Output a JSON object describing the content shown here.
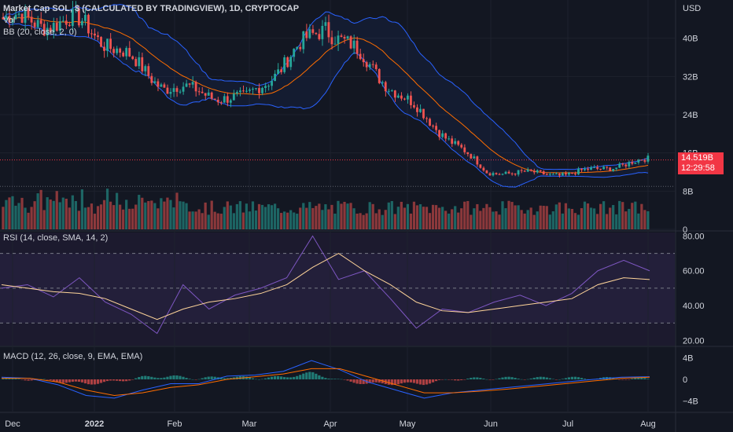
{
  "legend": {
    "title": "Market Cap SOL, $ (CALCULATED BY TRADINGVIEW), 1D, CRYPTOCAP",
    "vol": "Vol",
    "bb": "BB (20, close, 2, 0)",
    "rsi": "RSI (14, close, SMA, 14, 2)",
    "macd": "MACD (12, 26, close, 9, EMA, EMA)"
  },
  "price_axis": {
    "currency": "USD",
    "ticks": [
      "40B",
      "32B",
      "24B",
      "16B",
      "8B",
      "0"
    ]
  },
  "rsi_axis": {
    "ticks": [
      "80.00",
      "60.00",
      "40.00",
      "20.00"
    ]
  },
  "macd_axis": {
    "ticks": [
      "4B",
      "0",
      "−4B"
    ]
  },
  "time_axis": {
    "ticks": [
      "Dec",
      "2022",
      "Feb",
      "Mar",
      "Apr",
      "May",
      "Jun",
      "Jul",
      "Aug"
    ]
  },
  "last_price": {
    "value": "14.519B",
    "countdown": "12:29:58"
  },
  "colors": {
    "background": "#131722",
    "up": "#26a69a",
    "down": "#ef5350",
    "bb_band": "#2962ff",
    "bb_basis": "#ff6d00",
    "rsi": "#7e57c2",
    "rsi_ma": "#ffd59a",
    "macd": "#2962ff",
    "signal": "#ff6d00",
    "price_tag": "#f23645"
  },
  "chart_data": [
    {
      "type": "candlestick",
      "title": "Market Cap SOL, $ (CALCULATED BY TRADINGVIEW), 1D, CRYPTOCAP",
      "unit": "USD billions",
      "ylim": [
        0,
        48
      ],
      "x": [
        "Dec",
        "2022",
        "Feb",
        "Mar",
        "Apr",
        "May",
        "Jun",
        "Jul",
        "Aug"
      ],
      "close_series": [
        {
          "date": "Dec",
          "value": 44
        },
        {
          "date": "2022",
          "value": 43
        },
        {
          "date": "Feb",
          "value": 30
        },
        {
          "date": "Mar",
          "value": 27
        },
        {
          "date": "Apr",
          "value": 43
        },
        {
          "date": "May",
          "value": 27
        },
        {
          "date": "Jun",
          "value": 12
        },
        {
          "date": "Jul",
          "value": 11.5
        },
        {
          "date": "Aug",
          "value": 14.5
        }
      ],
      "last_value": 14.519
    },
    {
      "type": "bar",
      "title": "Vol",
      "note": "volume histogram in price pane"
    },
    {
      "type": "line",
      "title": "RSI (14, close, SMA, 14, 2)",
      "ylim": [
        17,
        82
      ],
      "levels": [
        70,
        50,
        30
      ],
      "series": [
        {
          "name": "RSI",
          "values": [
            50,
            52,
            45,
            56,
            42,
            35,
            24,
            52,
            38,
            46,
            50,
            56,
            80,
            55,
            60,
            44,
            27,
            38,
            36,
            42,
            46,
            40,
            47,
            60,
            66,
            60
          ]
        },
        {
          "name": "RSI-based MA",
          "values": [
            52,
            50,
            48,
            47,
            44,
            38,
            32,
            38,
            42,
            44,
            47,
            52,
            62,
            70,
            60,
            52,
            42,
            37,
            36,
            38,
            40,
            42,
            44,
            52,
            56,
            55
          ]
        }
      ]
    },
    {
      "type": "line",
      "title": "MACD (12, 26, close, 9, EMA, EMA)",
      "ylim": [
        -6,
        6
      ],
      "series": [
        {
          "name": "MACD",
          "values": [
            0.4,
            0.2,
            -1.0,
            -3.0,
            -3.5,
            -2.0,
            -0.8,
            -0.8,
            0.6,
            0.8,
            1.5,
            3.5,
            1.8,
            -0.5,
            -2.0,
            -3.5,
            -2.5,
            -2.0,
            -1.5,
            -1.0,
            -0.5,
            0,
            0.4,
            0.5
          ]
        },
        {
          "name": "Signal",
          "values": [
            0.2,
            0.2,
            -0.5,
            -2.0,
            -3.0,
            -2.5,
            -1.5,
            -1.0,
            0.0,
            0.5,
            1.0,
            2.0,
            2.0,
            0.5,
            -1.0,
            -2.5,
            -2.5,
            -2.2,
            -1.8,
            -1.3,
            -0.8,
            -0.3,
            0.2,
            0.4
          ]
        }
      ]
    }
  ]
}
